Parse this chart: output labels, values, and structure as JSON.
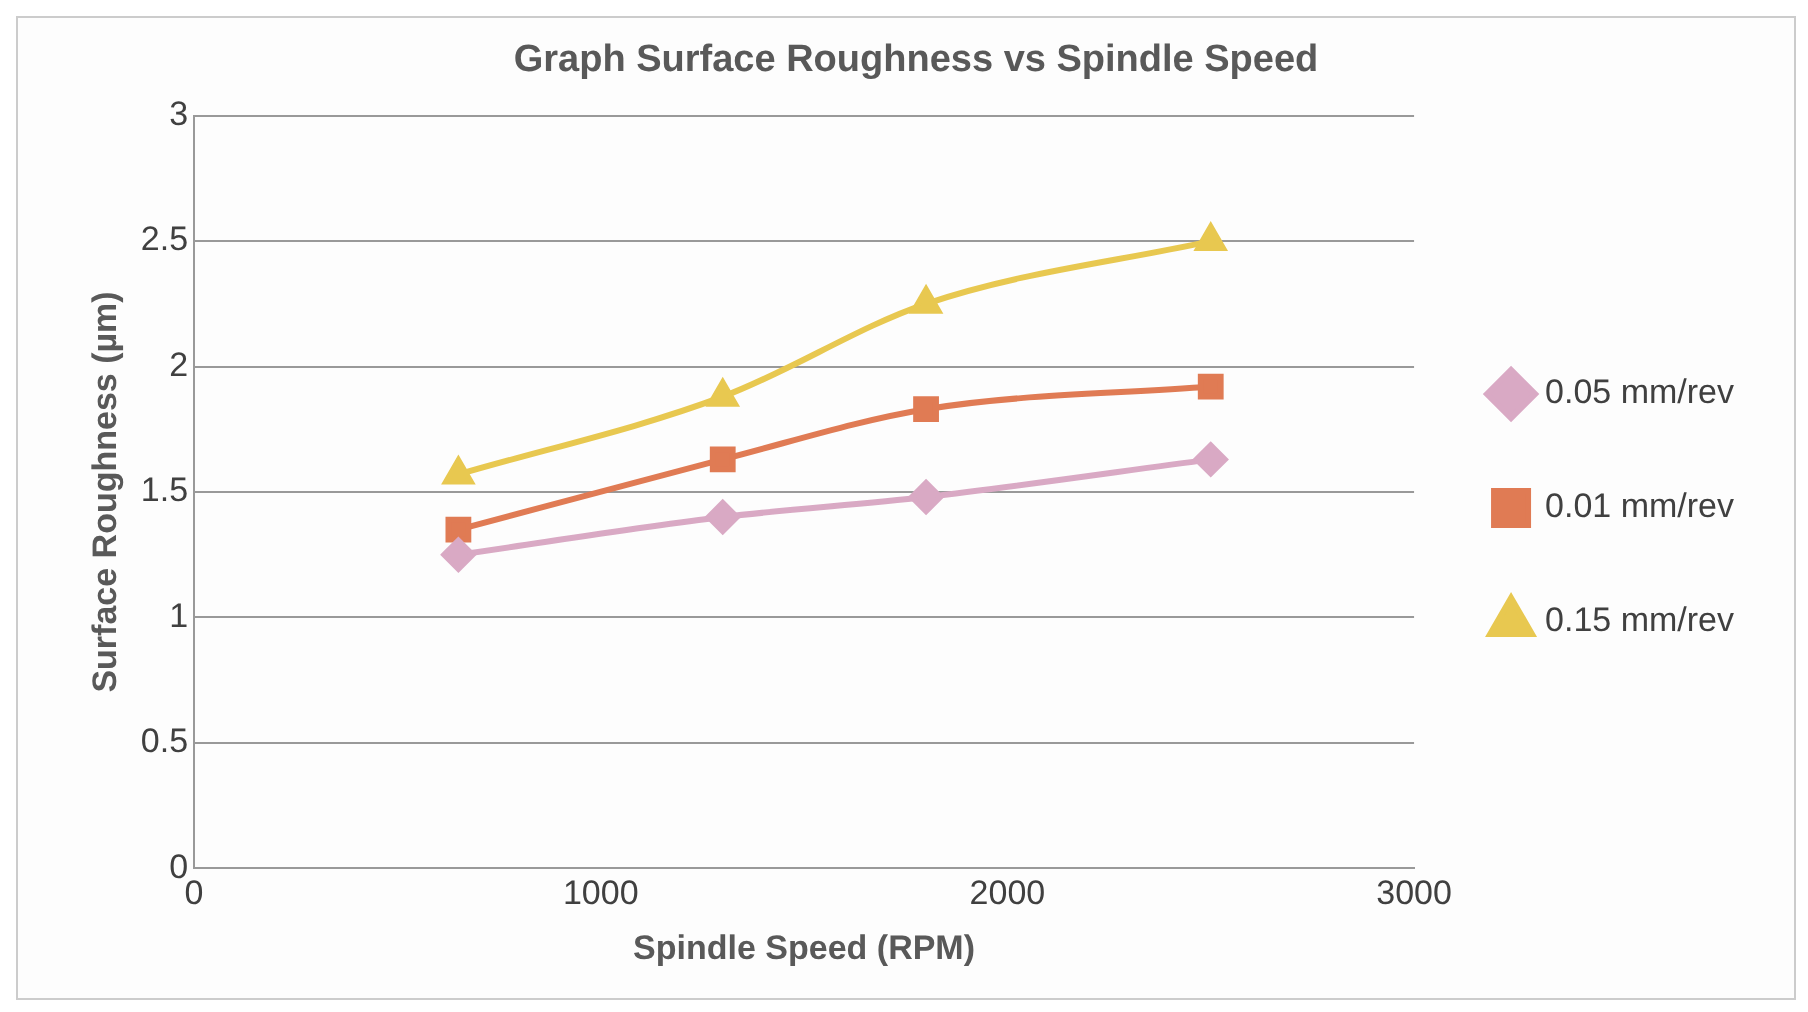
{
  "chart_data": {
    "type": "line",
    "title": "Graph Surface Roughness vs Spindle Speed",
    "xlabel": "Spindle Speed (RPM)",
    "ylabel": "Surface Roughness (µm)",
    "x": [
      650,
      1300,
      1800,
      2500
    ],
    "series": [
      {
        "name": "0.05 mm/rev",
        "color": "#d9a9c4",
        "marker": "diamond",
        "values": [
          1.25,
          1.4,
          1.48,
          1.63
        ]
      },
      {
        "name": "0.01 mm/rev",
        "color": "#e07b54",
        "marker": "square",
        "values": [
          1.35,
          1.63,
          1.83,
          1.92
        ]
      },
      {
        "name": "0.15 mm/rev",
        "color": "#e8c850",
        "marker": "triangle",
        "values": [
          1.57,
          1.88,
          2.25,
          2.5
        ]
      }
    ],
    "xlim": [
      0,
      3000
    ],
    "xticks": [
      0,
      1000,
      2000,
      3000
    ],
    "ylim": [
      0,
      3
    ],
    "yticks": [
      0,
      0.5,
      1,
      1.5,
      2,
      2.5,
      3
    ],
    "grid": "y",
    "legend": "right"
  }
}
